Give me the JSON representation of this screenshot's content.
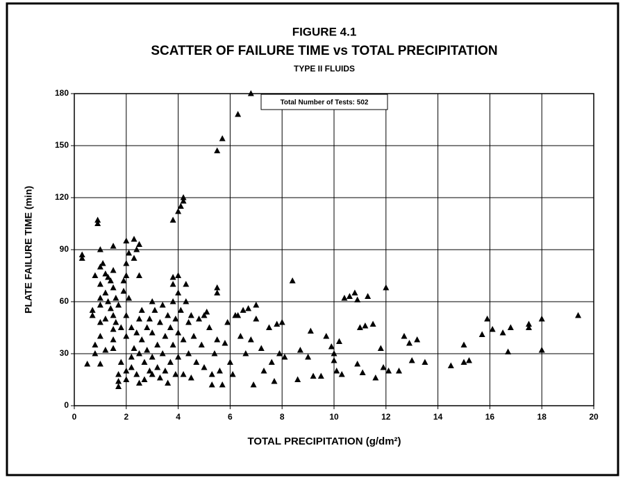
{
  "chart_data": {
    "type": "scatter",
    "title": "FIGURE 4.1",
    "subtitle": "SCATTER OF FAILURE TIME vs TOTAL PRECIPITATION",
    "subtitle2": "TYPE II FLUIDS",
    "annotation": "Total Number of Tests: 502",
    "xlabel": "TOTAL PRECIPITATION (g/dm²)",
    "ylabel": "PLATE FAILURE TIME (min)",
    "color": "#000000",
    "grid": true,
    "xlim": [
      0,
      20
    ],
    "ylim": [
      0,
      180
    ],
    "xticks": [
      0,
      2,
      4,
      6,
      8,
      10,
      12,
      14,
      16,
      18,
      20
    ],
    "yticks": [
      0,
      30,
      60,
      90,
      120,
      150,
      180
    ],
    "x": [
      0.3,
      0.3,
      0.5,
      0.9,
      0.9,
      0.8,
      0.7,
      0.7,
      0.8,
      0.8,
      1.0,
      1.0,
      1.0,
      1.0,
      1.0,
      1.0,
      1.0,
      1.0,
      1.1,
      1.2,
      1.2,
      1.2,
      1.2,
      1.3,
      1.3,
      1.4,
      1.4,
      1.5,
      1.5,
      1.5,
      1.5,
      1.5,
      1.5,
      1.5,
      1.6,
      1.6,
      1.7,
      1.7,
      1.7,
      1.7,
      1.8,
      1.8,
      1.9,
      1.9,
      2.0,
      2.0,
      2.0,
      2.0,
      2.0,
      2.0,
      2.0,
      2.1,
      2.1,
      2.2,
      2.2,
      2.2,
      2.3,
      2.3,
      2.3,
      2.4,
      2.4,
      2.4,
      2.5,
      2.5,
      2.5,
      2.5,
      2.5,
      2.6,
      2.6,
      2.7,
      2.7,
      2.8,
      2.8,
      2.9,
      2.9,
      3.0,
      3.0,
      3.0,
      3.0,
      3.1,
      3.2,
      3.2,
      3.3,
      3.3,
      3.4,
      3.4,
      3.5,
      3.5,
      3.6,
      3.6,
      3.7,
      3.7,
      3.8,
      3.8,
      3.8,
      3.8,
      3.8,
      3.9,
      3.9,
      4.0,
      4.0,
      4.0,
      4.0,
      4.0,
      4.1,
      4.1,
      4.2,
      4.2,
      4.2,
      4.2,
      4.3,
      4.3,
      4.4,
      4.4,
      4.5,
      4.5,
      4.6,
      4.7,
      4.8,
      4.9,
      5.0,
      5.0,
      5.1,
      5.2,
      5.3,
      5.3,
      5.4,
      5.5,
      5.5,
      5.5,
      5.5,
      5.6,
      5.7,
      5.7,
      5.8,
      5.9,
      6.0,
      6.1,
      6.2,
      6.3,
      6.3,
      6.4,
      6.5,
      6.6,
      6.7,
      6.8,
      6.8,
      6.9,
      7.0,
      7.0,
      7.2,
      7.3,
      7.5,
      7.6,
      7.7,
      7.8,
      7.9,
      8.0,
      8.1,
      8.4,
      8.6,
      8.7,
      9.0,
      9.1,
      9.2,
      9.5,
      9.7,
      9.9,
      10.0,
      10.0,
      10.1,
      10.2,
      10.3,
      10.4,
      10.6,
      10.8,
      10.9,
      10.9,
      11.0,
      11.1,
      11.2,
      11.3,
      11.5,
      11.6,
      11.8,
      11.9,
      12.0,
      12.1,
      12.5,
      12.7,
      12.9,
      13.0,
      13.2,
      13.5,
      14.5,
      15.0,
      15.0,
      15.2,
      15.7,
      15.9,
      16.1,
      16.5,
      16.7,
      16.8,
      17.5,
      17.5,
      18.0,
      18.0,
      19.4
    ],
    "values": [
      87,
      85,
      24,
      107,
      105,
      75,
      55,
      52,
      35,
      30,
      90,
      80,
      70,
      62,
      58,
      48,
      40,
      24,
      82,
      76,
      65,
      50,
      32,
      74,
      60,
      72,
      56,
      92,
      78,
      68,
      52,
      44,
      38,
      33,
      62,
      48,
      58,
      18,
      14,
      11,
      45,
      25,
      72,
      66,
      95,
      82,
      75,
      52,
      40,
      20,
      15,
      88,
      62,
      45,
      28,
      22,
      96,
      85,
      33,
      90,
      42,
      18,
      93,
      75,
      50,
      30,
      13,
      55,
      38,
      25,
      15,
      45,
      32,
      50,
      20,
      60,
      42,
      28,
      18,
      55,
      35,
      22,
      48,
      16,
      58,
      30,
      40,
      20,
      52,
      13,
      45,
      25,
      74,
      70,
      60,
      35,
      107,
      50,
      18,
      112,
      75,
      65,
      42,
      28,
      115,
      55,
      118,
      120,
      38,
      18,
      70,
      60,
      48,
      30,
      52,
      16,
      40,
      25,
      50,
      35,
      52,
      22,
      54,
      45,
      18,
      12,
      30,
      147,
      68,
      65,
      38,
      20,
      154,
      12,
      36,
      48,
      25,
      18,
      52,
      168,
      52,
      40,
      55,
      30,
      56,
      180,
      38,
      12,
      58,
      50,
      33,
      20,
      45,
      25,
      14,
      47,
      30,
      48,
      28,
      72,
      15,
      32,
      28,
      43,
      17,
      17,
      40,
      34,
      30,
      26,
      20,
      37,
      18,
      62,
      63,
      65,
      24,
      61,
      45,
      19,
      46,
      63,
      47,
      16,
      33,
      22,
      68,
      20,
      20,
      40,
      36,
      26,
      38,
      25,
      23,
      35,
      25,
      26,
      41,
      50,
      44,
      42,
      31,
      45,
      47,
      45,
      50,
      32,
      52
    ]
  }
}
